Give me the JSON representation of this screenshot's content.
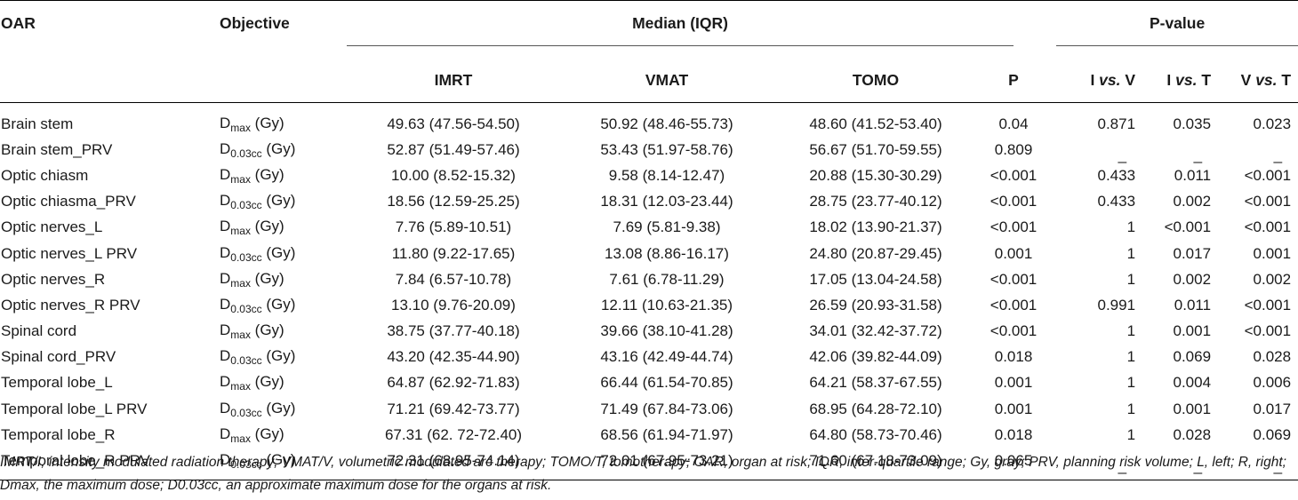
{
  "headers": {
    "oar": "OAR",
    "objective": "Objective",
    "median": "Median (IQR)",
    "pvalue": "P-value",
    "imrt": "IMRT",
    "vmat": "VMAT",
    "tomo": "TOMO",
    "p": "P",
    "ivv_pre": "I ",
    "ivv_it": "vs.",
    "ivv_post": " V",
    "ivt_pre": "I ",
    "ivt_it": "vs.",
    "ivt_post": " T",
    "vvt_pre": "V ",
    "vvt_it": "vs.",
    "vvt_post": " T"
  },
  "objective_parts": {
    "dmax": {
      "base": "D",
      "sub": "max",
      "unit": " (Gy)"
    },
    "d003": {
      "base": "D",
      "sub": "0.03cc",
      "unit": " (Gy)"
    }
  },
  "rows": [
    {
      "oar": "Brain stem",
      "obj": {
        "base": "D",
        "sub": "max",
        "unit": " (Gy)"
      },
      "imrt": "49.63 (47.56-54.50)",
      "vmat": "50.92 (48.46-55.73)",
      "tomo": "48.60 (41.52-53.40)",
      "p": "0.04",
      "ivv": "0.871",
      "ivt": "0.035",
      "vvt": "0.023"
    },
    {
      "oar": "Brain stem_PRV",
      "obj": {
        "base": "D",
        "sub": "0.03cc",
        "unit": " (Gy)"
      },
      "imrt": "52.87 (51.49-57.46)",
      "vmat": "53.43 (51.97-58.76)",
      "tomo": "56.67 (51.70-59.55)",
      "p": "0.809",
      "ivv": "_",
      "ivt": "_",
      "vvt": "_"
    },
    {
      "oar": "Optic chiasm",
      "obj": {
        "base": "D",
        "sub": "max",
        "unit": " (Gy)"
      },
      "imrt": "10.00 (8.52-15.32)",
      "vmat": "9.58 (8.14-12.47)",
      "tomo": "20.88 (15.30-30.29)",
      "p": "<0.001",
      "ivv": "0.433",
      "ivt": "0.011",
      "vvt": "<0.001"
    },
    {
      "oar": "Optic chiasma_PRV",
      "obj": {
        "base": "D",
        "sub": "0.03cc",
        "unit": " (Gy)"
      },
      "imrt": "18.56 (12.59-25.25)",
      "vmat": "18.31 (12.03-23.44)",
      "tomo": "28.75 (23.77-40.12)",
      "p": "<0.001",
      "ivv": "0.433",
      "ivt": "0.002",
      "vvt": "<0.001"
    },
    {
      "oar": "Optic nerves_L",
      "obj": {
        "base": "D",
        "sub": "max",
        "unit": " (Gy)"
      },
      "imrt": "7.76 (5.89-10.51)",
      "vmat": "7.69 (5.81-9.38)",
      "tomo": "18.02 (13.90-21.37)",
      "p": "<0.001",
      "ivv": "1",
      "ivt": "<0.001",
      "vvt": "<0.001"
    },
    {
      "oar": "Optic nerves_L PRV",
      "obj": {
        "base": "D",
        "sub": "0.03cc",
        "unit": " (Gy)"
      },
      "imrt": "11.80 (9.22-17.65)",
      "vmat": "13.08 (8.86-16.17)",
      "tomo": "24.80 (20.87-29.45)",
      "p": "0.001",
      "ivv": "1",
      "ivt": "0.017",
      "vvt": "0.001"
    },
    {
      "oar": "Optic nerves_R",
      "obj": {
        "base": "D",
        "sub": "max",
        "unit": " (Gy)"
      },
      "imrt": "7.84 (6.57-10.78)",
      "vmat": "7.61 (6.78-11.29)",
      "tomo": "17.05 (13.04-24.58)",
      "p": "<0.001",
      "ivv": "1",
      "ivt": "0.002",
      "vvt": "0.002"
    },
    {
      "oar": "Optic nerves_R PRV",
      "obj": {
        "base": "D",
        "sub": "0.03cc",
        "unit": " (Gy)"
      },
      "imrt": "13.10 (9.76-20.09)",
      "vmat": "12.11 (10.63-21.35)",
      "tomo": "26.59 (20.93-31.58)",
      "p": "<0.001",
      "ivv": "0.991",
      "ivt": "0.011",
      "vvt": "<0.001"
    },
    {
      "oar": "Spinal cord",
      "obj": {
        "base": "D",
        "sub": "max",
        "unit": " (Gy)"
      },
      "imrt": "38.75 (37.77-40.18)",
      "vmat": "39.66 (38.10-41.28)",
      "tomo": "34.01 (32.42-37.72)",
      "p": "<0.001",
      "ivv": "1",
      "ivt": "0.001",
      "vvt": "<0.001"
    },
    {
      "oar": "Spinal cord_PRV",
      "obj": {
        "base": "D",
        "sub": "0.03cc",
        "unit": " (Gy)"
      },
      "imrt": "43.20 (42.35-44.90)",
      "vmat": "43.16 (42.49-44.74)",
      "tomo": "42.06 (39.82-44.09)",
      "p": "0.018",
      "ivv": "1",
      "ivt": "0.069",
      "vvt": "0.028"
    },
    {
      "oar": "Temporal lobe_L",
      "obj": {
        "base": "D",
        "sub": "max",
        "unit": " (Gy)"
      },
      "imrt": "64.87 (62.92-71.83)",
      "vmat": "66.44 (61.54-70.85)",
      "tomo": "64.21 (58.37-67.55)",
      "p": "0.001",
      "ivv": "1",
      "ivt": "0.004",
      "vvt": "0.006"
    },
    {
      "oar": "Temporal lobe_L PRV",
      "obj": {
        "base": "D",
        "sub": "0.03cc",
        "unit": " (Gy)"
      },
      "imrt": "71.21 (69.42-73.77)",
      "vmat": "71.49 (67.84-73.06)",
      "tomo": "68.95 (64.28-72.10)",
      "p": "0.001",
      "ivv": "1",
      "ivt": "0.001",
      "vvt": "0.017"
    },
    {
      "oar": "Temporal lobe_R",
      "obj": {
        "base": "D",
        "sub": "max",
        "unit": " (Gy)"
      },
      "imrt": "67.31 (62. 72-72.40)",
      "vmat": "68.56 (61.94-71.97)",
      "tomo": "64.80 (58.73-70.46)",
      "p": "0.018",
      "ivv": "1",
      "ivt": "0.028",
      "vvt": "0.069"
    },
    {
      "oar": "Temporal lobe_R PRV",
      "obj": {
        "base": "D",
        "sub": "0.03cc",
        "unit": " (Gy)"
      },
      "imrt": "72.31 (68.95-74.14)",
      "vmat": "72.01 (67.95-73.21)",
      "tomo": "71.60 (67.18-73.09)",
      "p": "0.065",
      "ivv": "_",
      "ivt": "_",
      "vvt": "_"
    }
  ],
  "footnote": "IMRT/I, intensity modulated radiation therapy; VMAT/V, volumetric modulated arc therapy; TOMO/T, tomotherapy; OAR, organ at risk; IQR, inter-quartile range; Gy, gray; PRV, planning risk volume; L, left; R, right; Dmax, the maximum dose; D0.03cc, an approximate maximum dose for the organs at risk."
}
